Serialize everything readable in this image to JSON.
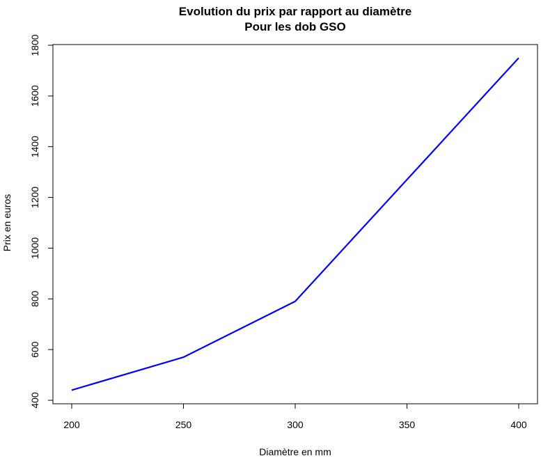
{
  "chart_data": {
    "type": "line",
    "title": "Evolution du prix par rapport au diamètre",
    "subtitle": "Pour les dob GSO",
    "xlabel": "Diamètre en mm",
    "ylabel": "Prix en euros",
    "x": [
      200,
      250,
      300,
      400
    ],
    "series": [
      {
        "name": "Prix",
        "values": [
          440,
          570,
          790,
          1750
        ],
        "color": "#0000ff"
      }
    ],
    "xlim": [
      200,
      400
    ],
    "ylim": [
      400,
      1800
    ],
    "xticks": [
      200,
      250,
      300,
      350,
      400
    ],
    "yticks": [
      400,
      600,
      800,
      1000,
      1200,
      1400,
      1600,
      1800
    ],
    "grid": false,
    "legend": null
  }
}
